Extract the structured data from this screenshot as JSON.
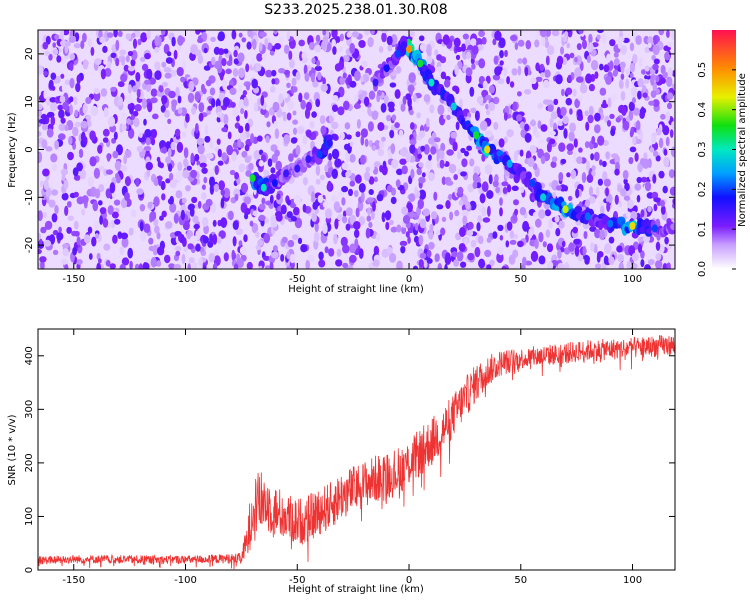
{
  "figure": {
    "title": "S233.2025.238.01.30.R08"
  },
  "chart_data": [
    {
      "type": "heatmap",
      "title": "S233.2025.238.01.30.R08",
      "xlabel": "Height of straight line (km)",
      "ylabel": "Frequency (Hz)",
      "xlim": [
        -166,
        119
      ],
      "ylim": [
        -25,
        25
      ],
      "x_ticks": [
        -150,
        -100,
        -50,
        0,
        50,
        100
      ],
      "y_ticks": [
        -20,
        -10,
        0,
        10,
        20
      ],
      "colorbar": {
        "label": "Normalized spectral amplitude",
        "range": [
          0,
          0.6
        ],
        "ticks": [
          0.0,
          0.1,
          0.2,
          0.3,
          0.4,
          0.5
        ],
        "tick_labels": [
          "0.0",
          "0.1",
          "0.2",
          "0.3",
          "0.4",
          "0.5"
        ],
        "colormap": "rainbow"
      },
      "noise_level": 0.12,
      "ridges": [
        {
          "x": [
            -2,
            0,
            5,
            10,
            20,
            30,
            35,
            45,
            55,
            60,
            70,
            80,
            90,
            100,
            110,
            119
          ],
          "y": [
            22,
            21,
            18,
            14,
            9,
            3,
            0,
            -3,
            -7,
            -10,
            -12.5,
            -14,
            -15.5,
            -16,
            -16.5,
            -16.8
          ],
          "amplitude": [
            0.45,
            0.5,
            0.35,
            0.3,
            0.28,
            0.35,
            0.45,
            0.25,
            0.2,
            0.28,
            0.42,
            0.22,
            0.22,
            0.45,
            0.2,
            0.15
          ]
        },
        {
          "x": [
            -70,
            -65,
            -60,
            -55,
            -50,
            -45,
            -40,
            -35
          ],
          "y": [
            -6,
            -8,
            -7,
            -5,
            -4,
            -2,
            -1,
            2
          ],
          "amplitude": [
            0.35,
            0.3,
            0.18,
            0.15,
            0.15,
            0.15,
            0.2,
            0.35
          ]
        },
        {
          "x": [
            -15,
            -10,
            -5,
            -2
          ],
          "y": [
            14,
            17,
            20,
            22
          ],
          "amplitude": [
            0.15,
            0.18,
            0.2,
            0.25
          ]
        }
      ]
    },
    {
      "type": "line",
      "xlabel": "Height of straight line (km)",
      "ylabel": "SNR (10 * v/v)",
      "xlim": [
        -166,
        119
      ],
      "ylim": [
        0,
        450
      ],
      "x_ticks": [
        -150,
        -100,
        -50,
        0,
        50,
        100
      ],
      "y_ticks": [
        0,
        100,
        200,
        300,
        400
      ],
      "color": "#ee3333",
      "series": [
        {
          "x": [
            -166,
            -150,
            -130,
            -110,
            -90,
            -75,
            -72,
            -70,
            -65,
            -60,
            -55,
            -50,
            -45,
            -40,
            -35,
            -30,
            -25,
            -20,
            -15,
            -10,
            -5,
            0,
            5,
            10,
            15,
            20,
            25,
            30,
            35,
            40,
            50,
            60,
            70,
            80,
            90,
            100,
            110,
            119
          ],
          "y": [
            18,
            20,
            20,
            19,
            20,
            22,
            60,
            120,
            130,
            110,
            100,
            90,
            95,
            110,
            120,
            140,
            150,
            160,
            170,
            175,
            185,
            200,
            220,
            240,
            260,
            290,
            320,
            350,
            370,
            385,
            395,
            400,
            405,
            410,
            412,
            415,
            418,
            420
          ],
          "noise_amplitude": [
            8,
            8,
            8,
            8,
            8,
            10,
            40,
            60,
            55,
            50,
            45,
            45,
            45,
            45,
            45,
            45,
            45,
            45,
            45,
            45,
            45,
            45,
            45,
            45,
            45,
            40,
            40,
            35,
            30,
            25,
            20,
            20,
            20,
            20,
            20,
            20,
            20,
            20
          ]
        }
      ]
    }
  ]
}
